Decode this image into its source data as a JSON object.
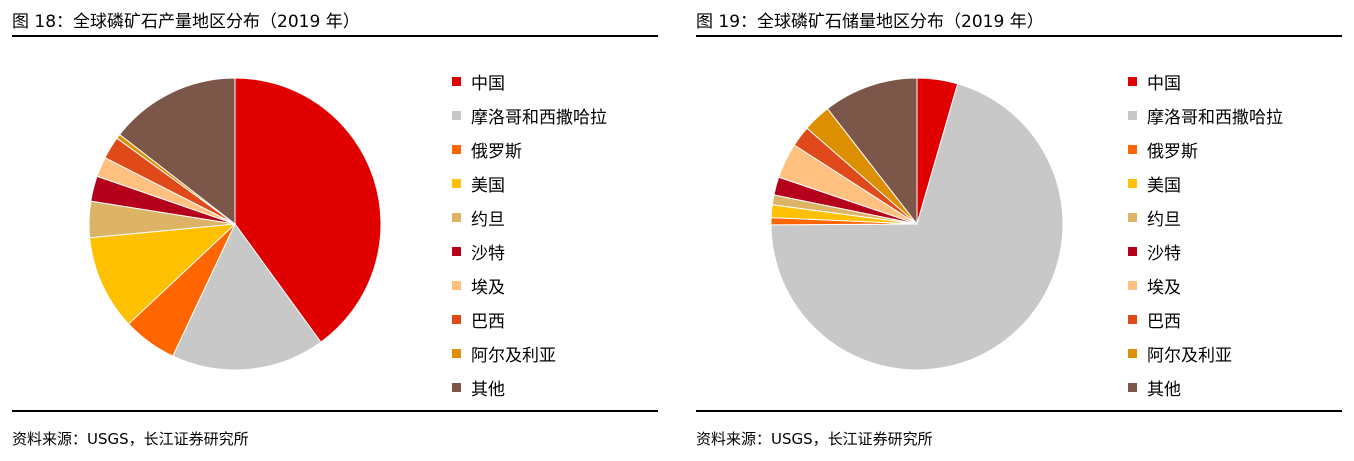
{
  "chart_data": [
    {
      "type": "pie",
      "title": "图 18：全球磷矿石产量地区分布（2019 年）",
      "source": "资料来源：USGS，长江证券研究所",
      "labels": [
        "中国",
        "摩洛哥和西撒哈拉",
        "俄罗斯",
        "美国",
        "约旦",
        "沙特",
        "埃及",
        "巴西",
        "阿尔及利亚",
        "其他"
      ],
      "values": [
        40.0,
        17.0,
        6.0,
        10.5,
        4.0,
        2.8,
        2.2,
        2.5,
        0.5,
        14.5
      ],
      "colors": [
        "#E00000",
        "#C8C8C8",
        "#FF6600",
        "#FFC000",
        "#DDB366",
        "#B5001B",
        "#FFC080",
        "#E04A1A",
        "#DC8F00",
        "#7B5649"
      ],
      "legend_position": "right"
    },
    {
      "type": "pie",
      "title": "图 19：全球磷矿石储量地区分布（2019 年）",
      "source": "资料来源：USGS，长江证券研究所",
      "labels": [
        "中国",
        "摩洛哥和西撒哈拉",
        "俄罗斯",
        "美国",
        "约旦",
        "沙特",
        "埃及",
        "巴西",
        "阿尔及利亚",
        "其他"
      ],
      "values": [
        4.5,
        70.4,
        0.8,
        1.4,
        1.1,
        2.0,
        3.9,
        2.3,
        3.1,
        10.5
      ],
      "colors": [
        "#E00000",
        "#C8C8C8",
        "#FF6600",
        "#FFC000",
        "#DDB366",
        "#B5001B",
        "#FFC080",
        "#E04A1A",
        "#DC8F00",
        "#7B5649"
      ],
      "legend_position": "right"
    }
  ]
}
